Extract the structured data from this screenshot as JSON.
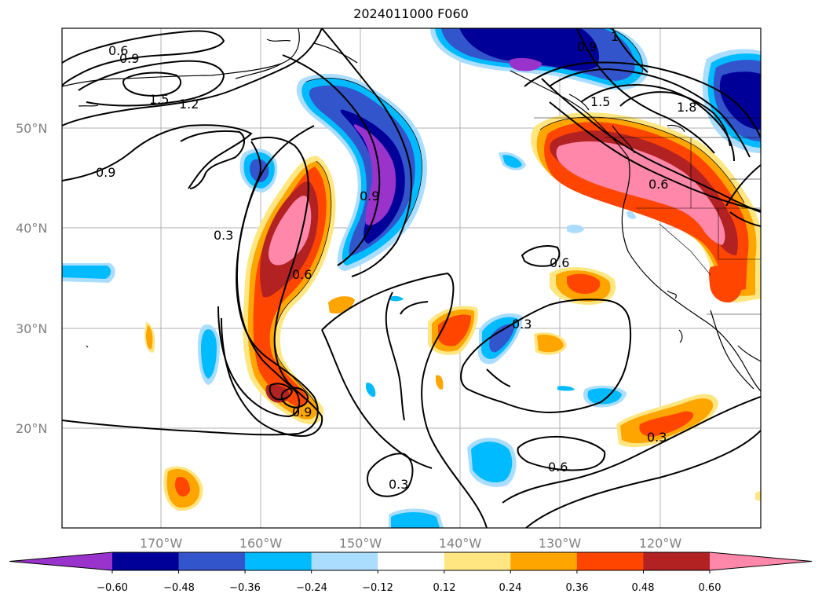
{
  "title": "2024011000 F060",
  "map": {
    "lat_labels": [
      "50°N",
      "40°N",
      "30°N",
      "20°N"
    ],
    "lon_labels": [
      "170°W",
      "160°W",
      "150°W",
      "140°W",
      "130°W",
      "120°W"
    ],
    "contour_labels": [
      "0.6",
      "0.9",
      "1.5",
      "1.2",
      "0.9",
      "0.3",
      "0.6",
      "0.9",
      "0.9",
      "1",
      "1.5",
      "1.8",
      "0.6",
      "0.6",
      "0.3",
      "0.9",
      "0.3",
      "0.6",
      "0.3"
    ]
  },
  "colorbar": {
    "tick_labels": [
      "−0.60",
      "−0.48",
      "−0.36",
      "−0.24",
      "−0.12",
      "0.12",
      "0.24",
      "0.36",
      "0.48",
      "0.60"
    ],
    "colors": [
      "#9933cc",
      "#000099",
      "#3355cc",
      "#00bbff",
      "#aaddff",
      "#ffffff",
      "#ffe680",
      "#ffa500",
      "#ff4500",
      "#b22222",
      "#ff88aa"
    ]
  },
  "palette": {
    "pink": "#ff88aa",
    "darkred": "#b22222",
    "orangered": "#ff4500",
    "orange": "#ffa500",
    "yellow": "#ffe680",
    "lightblue": "#aaddff",
    "skyblue": "#00bbff",
    "medblue": "#3355cc",
    "navy": "#000099",
    "purple": "#9933cc"
  }
}
